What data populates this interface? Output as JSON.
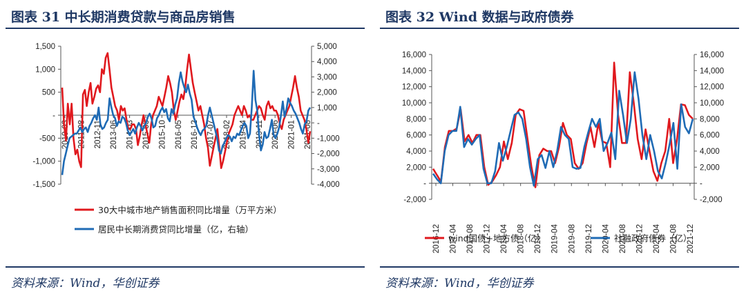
{
  "panel1": {
    "title": "图表 31 中长期消费贷款与商品房销售",
    "source": "资料来源：Wind，华创证券",
    "chart_data": {
      "type": "line",
      "title": "图表 31 中长期消费贷款与商品房销售",
      "left_axis": {
        "ylim": [
          -1500,
          1500
        ],
        "ticks": [
          "1,500",
          "1,000",
          "500",
          "-",
          "-500",
          "-1,000",
          "-1,500"
        ]
      },
      "right_axis": {
        "ylim": [
          -4000,
          5000
        ],
        "ticks": [
          "5,000",
          "4,000",
          "3,000",
          "2,000",
          "1,000",
          "-",
          "-1,000",
          "-2,000",
          "-3,000",
          "-4,000"
        ]
      },
      "x_ticks": [
        "2010-03",
        "2011-08",
        "2012-11",
        "2013-06",
        "2014-03",
        "2015-03",
        "2015-10",
        "2016-05",
        "2016-12",
        "2017-07",
        "2018-02",
        "2019-04",
        "2019-11",
        "2020-06",
        "2021-01",
        "2021-08"
      ],
      "series": [
        {
          "name": "30大中城市地产销售面积同比增量（万平方米）",
          "axis": "left",
          "color": "#e0191e",
          "values": [
            600,
            -200,
            -550,
            250,
            -200,
            250,
            -500,
            -850,
            -750,
            -1000,
            -1130,
            450,
            550,
            200,
            500,
            700,
            250,
            400,
            580,
            650,
            500,
            1000,
            900,
            1250,
            1350,
            1000,
            600,
            400,
            200,
            100,
            -100,
            200,
            100,
            150,
            -100,
            -300,
            -300,
            -200,
            -200,
            -300,
            -650,
            -450,
            -200,
            0,
            -200,
            -400,
            -600,
            -200,
            0,
            100,
            200,
            400,
            300,
            200,
            400,
            600,
            850,
            700,
            500,
            100,
            -100,
            100,
            300,
            450,
            350,
            600,
            1000,
            1320,
            1000,
            700,
            500,
            300,
            100,
            200,
            0,
            -200,
            -500,
            -700,
            -1100,
            -900,
            -700,
            -500,
            -300,
            -700,
            -1150,
            -1000,
            -800,
            -600,
            -400,
            -300,
            -200,
            0,
            100,
            200,
            100,
            0,
            200,
            100,
            -50,
            0,
            -100,
            -100,
            0,
            100,
            200,
            150,
            0,
            -100,
            200,
            300,
            150,
            200,
            100,
            100,
            0,
            -200,
            -300,
            -100,
            0,
            100,
            200,
            400,
            600,
            850,
            600,
            400,
            100,
            0,
            -100,
            -300,
            -600,
            -350
          ]
        },
        {
          "name": "居民中长期消费贷同比增量（亿，右轴）",
          "axis": "right",
          "color": "#1f6bb5",
          "values": [
            -3400,
            -2500,
            -2000,
            -1500,
            -1000,
            -900,
            -800,
            -700,
            -700,
            -500,
            -300,
            -600,
            -400,
            -300,
            -600,
            -200,
            0,
            300,
            500,
            200,
            1000,
            -100,
            -400,
            -300,
            0,
            200,
            1600,
            1000,
            500,
            300,
            -200,
            100,
            0,
            400,
            300,
            0,
            -500,
            -800,
            -600,
            -400,
            -700,
            -300,
            0,
            -200,
            -500,
            -200,
            0,
            400,
            600,
            300,
            -300,
            -200,
            300,
            500,
            800,
            1000,
            700,
            900,
            300,
            100,
            900,
            600,
            1200,
            1600,
            2600,
            3300,
            2700,
            2300,
            2000,
            2500,
            1900,
            1500,
            400,
            100,
            -300,
            -600,
            -800,
            -500,
            -400,
            -200,
            500,
            1000,
            500,
            0,
            -500,
            -1000,
            -1800,
            -2000,
            -1500,
            -1300,
            -1000,
            -800,
            -900,
            -1200,
            -900,
            -1000,
            -700,
            -800,
            -500,
            -200,
            0,
            -200,
            -1000,
            -700,
            1000,
            3400,
            1500,
            800,
            -800,
            -1800,
            -1400,
            -600,
            -1000,
            -900,
            -400,
            200,
            -800,
            -1000,
            -700,
            -300,
            500,
            1400,
            400,
            900,
            1600,
            1300,
            1100,
            800,
            600,
            300,
            0,
            -400,
            -700,
            -100,
            100,
            800,
            1000
          ]
        }
      ]
    },
    "legend": [
      "30大中城市地产销售面积同比增量（万平方米）",
      "居民中长期消费贷同比增量（亿，右轴）"
    ]
  },
  "panel2": {
    "title": "图表 32 Wind 数据与政府债券",
    "source": "资料来源：Wind，华创证券",
    "chart_data": {
      "type": "line",
      "title": "图表 32 Wind 数据与政府债券",
      "left_axis": {
        "ylim": [
          -2000,
          16000
        ],
        "ticks": [
          "16,000",
          "14,000",
          "12,000",
          "10,000",
          "8,000",
          "6,000",
          "4,000",
          "2,000",
          "-",
          "-2,000"
        ]
      },
      "right_axis": {
        "ylim": [
          -2000,
          16000
        ],
        "ticks": [
          "16,000",
          "14,000",
          "12,000",
          "10,000",
          "8,000",
          "6,000",
          "4,000",
          "2,000",
          "-",
          "-2,000"
        ]
      },
      "x_ticks": [
        "2016-12",
        "2017-04",
        "2017-08",
        "2017-12",
        "2018-04",
        "2018-08",
        "2018-12",
        "2019-04",
        "2019-08",
        "2019-12",
        "2020-04",
        "2020-08",
        "2020-12",
        "2021-04",
        "2021-08",
        "2021-12"
      ],
      "series": [
        {
          "name": "wind国债+地方债（亿）",
          "axis": "left",
          "color": "#e0191e",
          "values": [
            1800,
            1000,
            200,
            4500,
            6500,
            6500,
            6800,
            9200,
            5200,
            6000,
            5000,
            6000,
            6000,
            2000,
            -200,
            200,
            1000,
            2000,
            5200,
            3000,
            5000,
            8500,
            9200,
            9000,
            5500,
            2000,
            -500,
            3500,
            4300,
            4000,
            4000,
            2500,
            4500,
            7500,
            6000,
            5500,
            2500,
            1800,
            2500,
            5000,
            7000,
            4500,
            7500,
            5200,
            5000,
            2000,
            15000,
            8500,
            5000,
            5000,
            13800,
            10000,
            5500,
            3000,
            6700,
            4000,
            1500,
            300,
            2500,
            4000,
            8000,
            2500,
            5500,
            9800,
            9700,
            8500,
            8000
          ]
        },
        {
          "name": "社融政府债券（亿）",
          "axis": "right",
          "color": "#1f6bb5",
          "values": [
            1200,
            500,
            0,
            4000,
            6000,
            6500,
            6500,
            9500,
            4500,
            5500,
            4800,
            5500,
            6000,
            1800,
            0,
            0,
            1500,
            5000,
            2800,
            4500,
            6500,
            8500,
            8800,
            8000,
            5500,
            2000,
            -300,
            3000,
            3500,
            1900,
            4000,
            2000,
            4000,
            7000,
            6000,
            5500,
            2000,
            1800,
            1900,
            4500,
            6300,
            8000,
            7000,
            8000,
            4000,
            5000,
            6300,
            3000,
            11500,
            8500,
            5000,
            8000,
            13800,
            10500,
            6000,
            3000,
            6000,
            4000,
            1500,
            600,
            2500,
            4800,
            7500,
            1800,
            9800,
            7000,
            6200,
            8000
          ]
        }
      ]
    },
    "legend": [
      "wind国债+地方债（亿）",
      "社融政府债券（亿）"
    ]
  }
}
